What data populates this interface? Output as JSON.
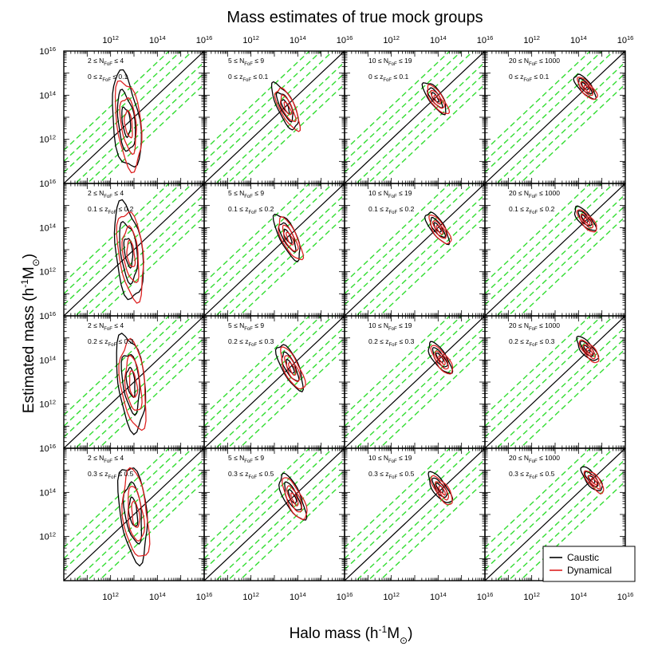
{
  "chart_data": {
    "type": "contour",
    "title": "Mass estimates of true mock groups",
    "xlabel": "Halo mass",
    "xlabel_unit": "(h-1 Mo)",
    "ylabel": "Estimated mass",
    "ylabel_unit": "(h-1 Mo)",
    "x_log_range": [
      10,
      16
    ],
    "y_log_range": [
      10,
      16
    ],
    "tick_labels": [
      "1012",
      "1014",
      "1016"
    ],
    "tick_base": "10",
    "tick_exponents": [
      "12",
      "14",
      "16"
    ],
    "n_rows": 4,
    "n_cols": 4,
    "column_labels": [
      "2 ≤ NFoF ≤ 4",
      "5 ≤ NFoF ≤ 9",
      "10 ≤ NFoF ≤ 19",
      "20 ≤ NFoF ≤ 1000"
    ],
    "column_label_parts": [
      {
        "lo": "2",
        "hi": "4"
      },
      {
        "lo": "5",
        "hi": "9"
      },
      {
        "lo": "10",
        "hi": "19"
      },
      {
        "lo": "20",
        "hi": "1000"
      }
    ],
    "row_labels": [
      "0 ≤ zFoF ≤ 0.1",
      "0.1 ≤ zFoF ≤ 0.2",
      "0.2 ≤ zFoF ≤ 0.3",
      "0.3 ≤ zFoF ≤ 0.5"
    ],
    "row_label_parts": [
      {
        "lo": "0",
        "hi": "0.1"
      },
      {
        "lo": "0.1",
        "hi": "0.2"
      },
      {
        "lo": "0.2",
        "hi": "0.3"
      },
      {
        "lo": "0.3",
        "hi": "0.5"
      }
    ],
    "one_to_one_line": {
      "slope": 1,
      "intercept": 0,
      "color": "#000000"
    },
    "scatter_bands": {
      "offsets_dex": [
        -1.5,
        -1.0,
        -0.5,
        0.5,
        1.0,
        1.5
      ],
      "color": "#33dd33"
    },
    "series": [
      {
        "name": "Caustic",
        "color": "#000000"
      },
      {
        "name": "Dynamical",
        "color": "#dd2222"
      }
    ],
    "legend": {
      "placement": "bottom-right",
      "entries": [
        "Caustic",
        "Dynamical"
      ]
    },
    "contour_centers": [
      [
        [
          12.7,
          12.8
        ],
        [
          13.5,
          13.5
        ],
        [
          13.9,
          13.9
        ],
        [
          14.3,
          14.4
        ]
      ],
      [
        [
          12.8,
          12.9
        ],
        [
          13.6,
          13.6
        ],
        [
          14.0,
          14.0
        ],
        [
          14.3,
          14.4
        ]
      ],
      [
        [
          12.9,
          13.0
        ],
        [
          13.7,
          13.7
        ],
        [
          14.1,
          14.1
        ],
        [
          14.4,
          14.5
        ]
      ],
      [
        [
          13.0,
          13.1
        ],
        [
          13.8,
          13.8
        ],
        [
          14.1,
          14.2
        ],
        [
          14.6,
          14.6
        ]
      ]
    ]
  }
}
